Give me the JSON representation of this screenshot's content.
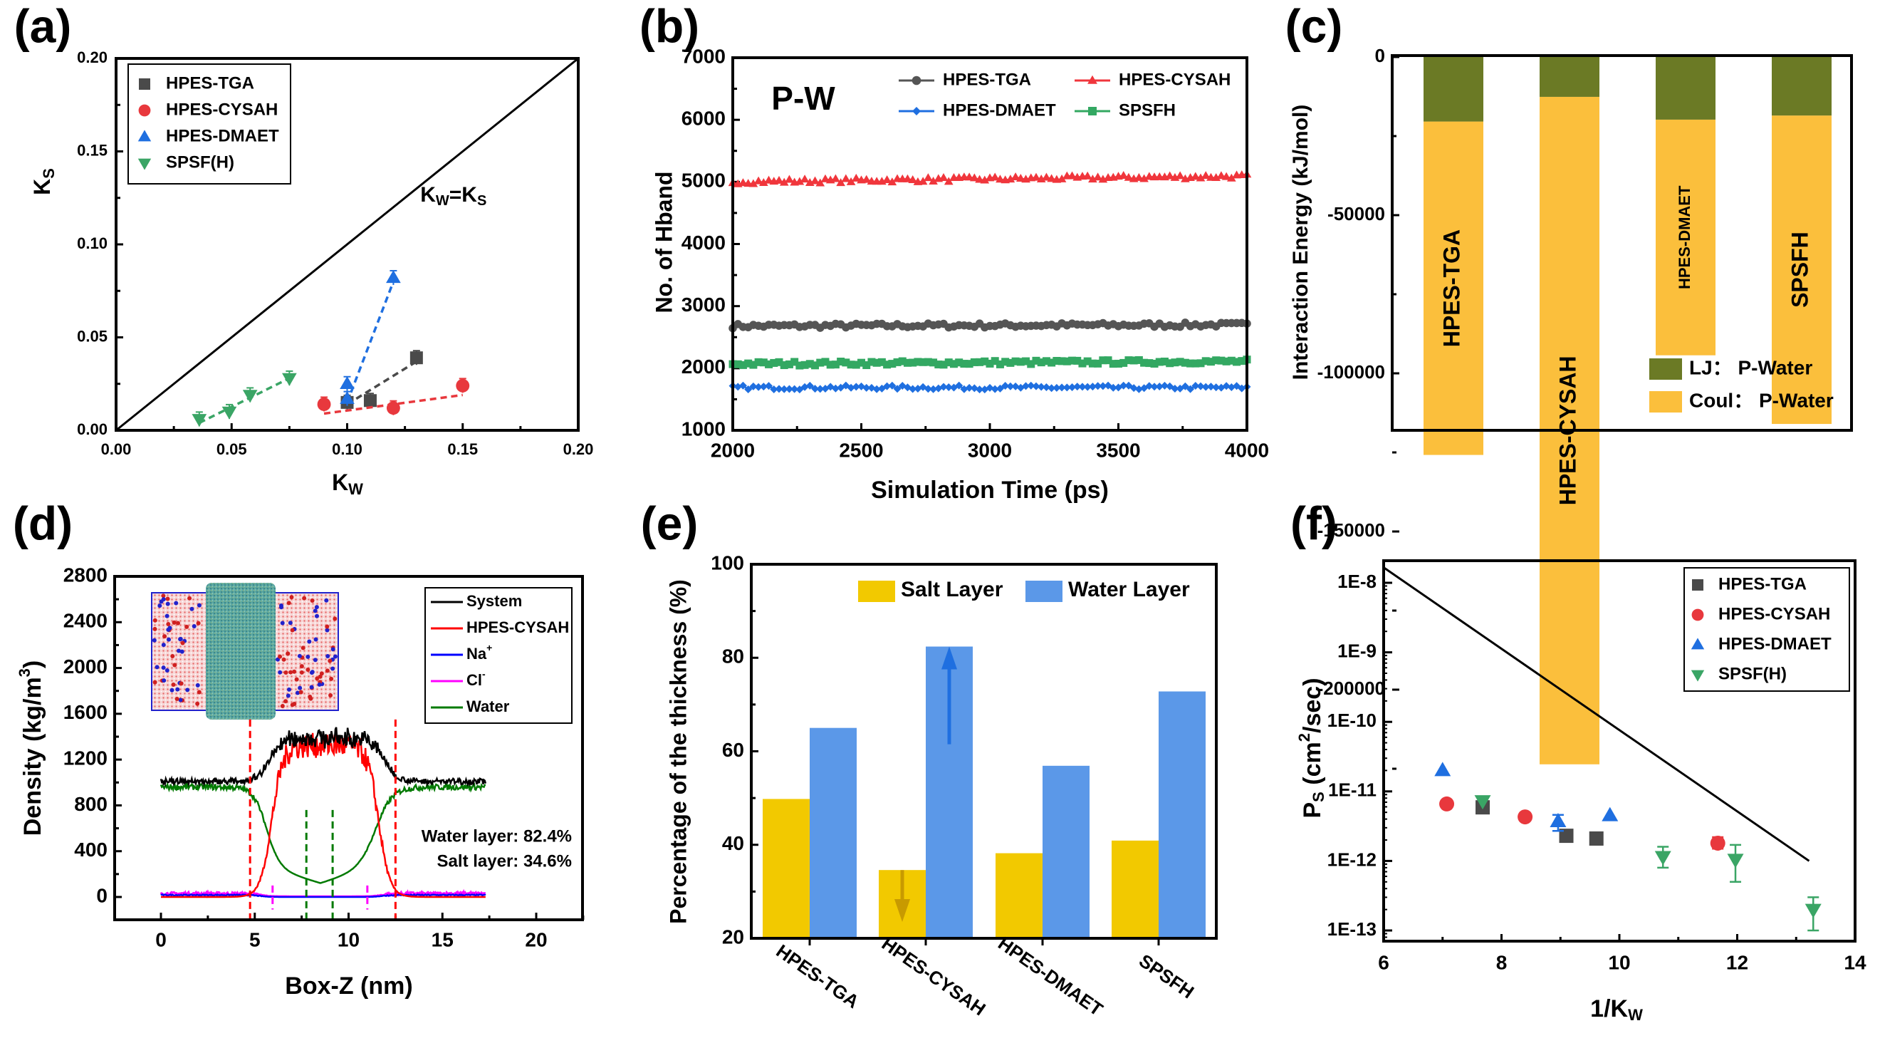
{
  "chart_data": [
    {
      "panel": "(a)",
      "type": "scatter",
      "xlabel": "K_W",
      "ylabel": "K_S",
      "xlim": [
        0,
        0.2
      ],
      "ylim": [
        0,
        0.2
      ],
      "xticks": [
        "0.00",
        "0.05",
        "0.10",
        "0.15",
        "0.20"
      ],
      "yticks": [
        "0.00",
        "0.05",
        "0.10",
        "0.15",
        "0.20"
      ],
      "legend_position": "top-left",
      "annotation": "K_W=K_S",
      "reference_line": {
        "label": "K_W=K_S",
        "x": [
          0,
          0.2
        ],
        "y": [
          0,
          0.2
        ]
      },
      "series": [
        {
          "name": "HPES-TGA",
          "marker": "square",
          "color": "#4a4a4a",
          "points": [
            [
              0.1,
              0.015
            ],
            [
              0.11,
              0.016
            ],
            [
              0.13,
              0.039
            ]
          ],
          "fit": [
            [
              0.1,
              0.014
            ],
            [
              0.13,
              0.037
            ]
          ]
        },
        {
          "name": "HPES-CYSAH",
          "marker": "circle",
          "color": "#e8383d",
          "points": [
            [
              0.09,
              0.014
            ],
            [
              0.12,
              0.012
            ],
            [
              0.15,
              0.024
            ]
          ],
          "fit": [
            [
              0.09,
              0.009
            ],
            [
              0.15,
              0.019
            ]
          ]
        },
        {
          "name": "HPES-DMAET",
          "marker": "triangle-up",
          "color": "#1f6fe0",
          "points": [
            [
              0.1,
              0.025
            ],
            [
              0.1,
              0.017
            ],
            [
              0.12,
              0.082
            ]
          ],
          "fit": [
            [
              0.1,
              0.015
            ],
            [
              0.12,
              0.08
            ]
          ]
        },
        {
          "name": "SPSF(H)",
          "marker": "triangle-down",
          "color": "#3aa565",
          "points": [
            [
              0.036,
              0.006
            ],
            [
              0.049,
              0.01
            ],
            [
              0.058,
              0.019
            ],
            [
              0.075,
              0.028
            ]
          ],
          "fit": [
            [
              0.036,
              0.004
            ],
            [
              0.075,
              0.028
            ]
          ]
        }
      ]
    },
    {
      "panel": "(b)",
      "type": "line",
      "annotation": "P-W",
      "xlabel": "Simulation Time (ps)",
      "ylabel": "No. of Hband",
      "xlim": [
        2000,
        4000
      ],
      "ylim": [
        1000,
        7000
      ],
      "xticks": [
        "2000",
        "2500",
        "3000",
        "3500",
        "4000"
      ],
      "yticks": [
        "1000",
        "2000",
        "3000",
        "4000",
        "5000",
        "6000",
        "7000"
      ],
      "legend_position": "top-right",
      "series": [
        {
          "name": "HPES-TGA",
          "marker": "circle",
          "color": "#555555",
          "mean": 2690,
          "start": 2680,
          "end": 2700,
          "noise": 45
        },
        {
          "name": "HPES-CYSAH",
          "marker": "triangle-up",
          "color": "#f0363c",
          "mean": 5040,
          "start": 5000,
          "end": 5090,
          "noise": 45
        },
        {
          "name": "HPES-DMAET",
          "marker": "diamond",
          "color": "#1f6fe0",
          "mean": 1690,
          "start": 1690,
          "end": 1690,
          "noise": 40
        },
        {
          "name": "SPSFH",
          "marker": "square",
          "color": "#33a862",
          "mean": 2090,
          "start": 2070,
          "end": 2110,
          "noise": 40
        }
      ]
    },
    {
      "panel": "(c)",
      "type": "bar",
      "stacked": true,
      "ylabel": "Interaction Energy (kJ/mol)",
      "ylim": [
        -240000,
        0
      ],
      "yticks": [
        "0",
        "-50000",
        "-100000",
        "-150000",
        "-200000"
      ],
      "ytick_values": [
        0,
        -50000,
        -100000,
        -150000,
        -200000
      ],
      "categories": [
        "HPES-TGA",
        "HPES-CYSAH",
        "HPES-DMAET",
        "SPSFH"
      ],
      "legend_position": "bottom-right",
      "series": [
        {
          "name": "LJ： P-Water",
          "color": "#6b7a25",
          "values": [
            -20400,
            -12600,
            -19800,
            -18500
          ]
        },
        {
          "name": "Coul： P-Water",
          "color": "#fbbf3c",
          "values": [
            -105400,
            -211000,
            -74500,
            -97500
          ]
        }
      ]
    },
    {
      "panel": "(d)",
      "type": "line",
      "xlabel": "Box-Z (nm)",
      "ylabel": "Density (kg/m³)",
      "xlim": [
        -2.5,
        22.5
      ],
      "ylim": [
        -200,
        2800
      ],
      "xticks": [
        "0",
        "5",
        "10",
        "15",
        "20"
      ],
      "xtick_values": [
        0,
        5,
        10,
        15,
        20
      ],
      "yticks": [
        "0",
        "400",
        "800",
        "1200",
        "1600",
        "2000",
        "2400",
        "2800"
      ],
      "ytick_values": [
        0,
        400,
        800,
        1200,
        1600,
        2000,
        2400,
        2800
      ],
      "legend_position": "top-right",
      "legend": [
        {
          "name": "System",
          "color": "#000000"
        },
        {
          "name": "HPES-CYSAH",
          "color": "#ff0000"
        },
        {
          "name": "Na",
          "sup": "+",
          "color": "#0000ff"
        },
        {
          "name": "Cl",
          "sup": "-",
          "color": "#ff00ff"
        },
        {
          "name": "Water",
          "color": "#007a00"
        }
      ],
      "profiles": {
        "x_range": [
          0,
          17.3
        ],
        "membrane_edges_nm": [
          4.75,
          12.5
        ],
        "water_layer_nm": [
          7.75,
          9.15
        ],
        "salt_layer_nm": [
          5.95,
          11.0
        ],
        "bulk_system_density": 1010,
        "bulk_water_density": 960,
        "membrane_peak_density": 1400,
        "bulk_ion_density": 25
      },
      "annotations": [
        {
          "text": "Water layer: 82.4%",
          "color": "#007a00"
        },
        {
          "text": "Salt layer: 34.6%",
          "color": "#ff00ff"
        }
      ],
      "inset": "molecular snapshot of membrane in salt water box"
    },
    {
      "panel": "(e)",
      "type": "bar",
      "ylabel": "Percentage of the thickness (%)",
      "ylim": [
        20,
        100
      ],
      "yticks": [
        "20",
        "40",
        "60",
        "80",
        "100"
      ],
      "ytick_values": [
        20,
        40,
        60,
        80,
        100
      ],
      "categories": [
        "HPES-TGA",
        "HPES-CYSAH",
        "HPES-DMAET",
        "SPSFH"
      ],
      "legend_position": "top-right",
      "series": [
        {
          "name": "Salt Layer",
          "color": "#f2c900",
          "values": [
            49.8,
            34.6,
            38.2,
            40.9
          ]
        },
        {
          "name": "Water Layer",
          "color": "#5b98e8",
          "values": [
            65.0,
            82.4,
            56.9,
            72.8
          ]
        }
      ],
      "arrows": [
        {
          "category": "HPES-CYSAH",
          "series": "Water Layer",
          "direction": "up",
          "color": "#1f6fe0",
          "from": 61.5,
          "to": 82.4
        },
        {
          "category": "HPES-CYSAH",
          "series": "Salt Layer",
          "direction": "down",
          "color": "#c89a00",
          "from": 34.6,
          "to": 23.5
        }
      ]
    },
    {
      "panel": "(f)",
      "type": "scatter",
      "yscale": "log",
      "xlabel": "1/K_W",
      "ylabel": "P_S (cm²/sec)",
      "xlim": [
        6,
        14
      ],
      "ylim_log10": [
        -13.15,
        -7.7
      ],
      "xticks": [
        "6",
        "8",
        "10",
        "12",
        "14"
      ],
      "xtick_values": [
        6,
        8,
        10,
        12,
        14
      ],
      "yticks": [
        "1E-8",
        "1E-9",
        "1E-10",
        "1E-11",
        "1E-12",
        "1E-13"
      ],
      "ytick_values": [
        -8,
        -9,
        -10,
        -11,
        -12,
        -13
      ],
      "legend_position": "top-right",
      "reference_line": {
        "x": [
          6,
          13.22
        ],
        "y": [
          1.66e-08,
          1e-12
        ]
      },
      "series": [
        {
          "name": "HPES-TGA",
          "marker": "square",
          "color": "#4a4a4a",
          "points": [
            [
              7.68,
              5.9e-12
            ],
            [
              9.1,
              2.3e-12
            ],
            [
              9.61,
              2.1e-12
            ]
          ]
        },
        {
          "name": "HPES-CYSAH",
          "marker": "circle",
          "color": "#e8383d",
          "points": [
            [
              7.07,
              6.6e-12
            ],
            [
              8.4,
              4.3e-12
            ],
            [
              11.67,
              1.8e-12
            ]
          ],
          "errors": [
            [
              0,
              0
            ],
            [
              0,
              0
            ],
            [
              1.5e-12,
              2.2e-12
            ]
          ]
        },
        {
          "name": "HPES-DMAET",
          "marker": "triangle-up",
          "color": "#1f6fe0",
          "points": [
            [
              7.0,
              2e-11
            ],
            [
              8.96,
              3.7e-12
            ],
            [
              9.84,
              4.5e-12
            ]
          ],
          "errors": [
            [
              0,
              0
            ],
            [
              2.7e-12,
              4.6e-12
            ],
            [
              0,
              0
            ]
          ]
        },
        {
          "name": "SPSF(H)",
          "marker": "triangle-down",
          "color": "#3aa565",
          "points": [
            [
              7.68,
              7.3e-12
            ],
            [
              10.74,
              1.15e-12
            ],
            [
              11.97,
              1.05e-12
            ],
            [
              13.29,
              2e-13
            ]
          ],
          "errors": [
            [
              0,
              0
            ],
            [
              8e-13,
              1.6e-12
            ],
            [
              5e-13,
              1.7e-12
            ],
            [
              1e-13,
              3e-13
            ]
          ]
        }
      ]
    }
  ],
  "panel_labels": [
    "(a)",
    "(b)",
    "(c)",
    "(d)",
    "(e)",
    "(f)"
  ]
}
